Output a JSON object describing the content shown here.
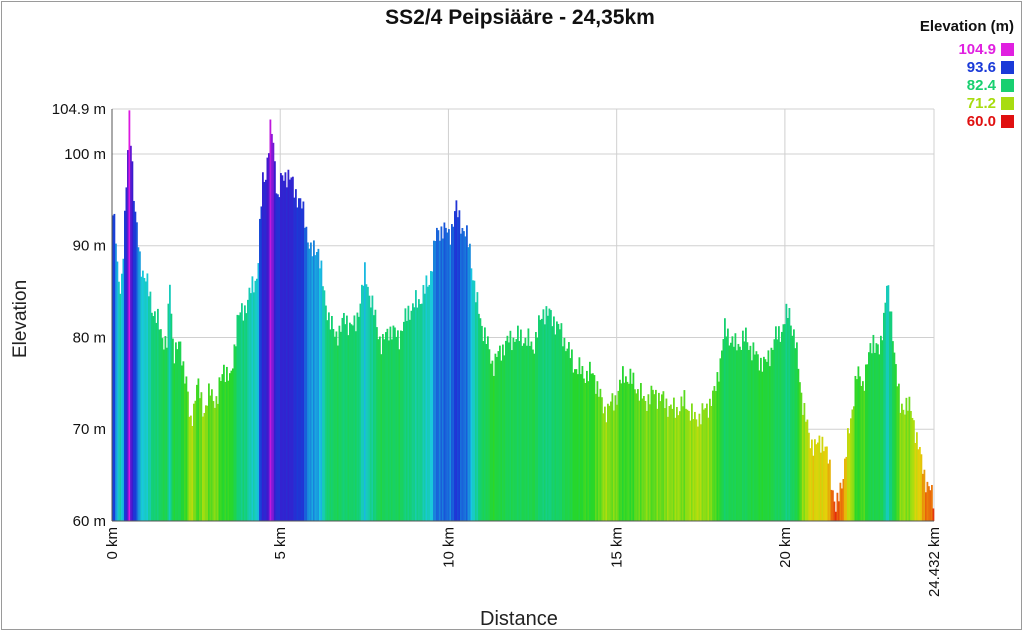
{
  "chart_data": {
    "type": "area",
    "title": "SS2/4 Peipsiääre - 24,35km",
    "xlabel": "Distance",
    "ylabel": "Elevation",
    "xlim": [
      0,
      24.432
    ],
    "ylim": [
      60,
      104.9
    ],
    "y_ticks": [
      "60 m",
      "70 m",
      "80 m",
      "90 m",
      "100 m",
      "104.9 m"
    ],
    "y_tick_values": [
      60,
      70,
      80,
      90,
      100,
      104.9
    ],
    "x_ticks": [
      "0 km",
      "5 km",
      "10 km",
      "15 km",
      "20 km",
      "24.432 km"
    ],
    "x_tick_values": [
      0,
      5,
      10,
      15,
      20,
      24.432
    ],
    "grid": true,
    "legend": {
      "title": "Elevation (m)",
      "placement": "top-right",
      "entries": [
        {
          "label": "104.9",
          "color": "#e020e0"
        },
        {
          "label": "93.6",
          "color": "#1a3ad8"
        },
        {
          "label": "82.4",
          "color": "#18d070"
        },
        {
          "label": "71.2",
          "color": "#a8dc10"
        },
        {
          "label": "60.0",
          "color": "#e01010"
        }
      ]
    },
    "profile": {
      "x": [
        0,
        0.1,
        0.15,
        0.25,
        0.4,
        0.5,
        0.55,
        0.65,
        0.8,
        1.0,
        1.2,
        1.4,
        1.6,
        1.7,
        1.8,
        2.0,
        2.2,
        2.3,
        2.5,
        2.7,
        2.9,
        3.1,
        3.3,
        3.5,
        3.7,
        3.9,
        4.1,
        4.3,
        4.45,
        4.55,
        4.7,
        4.8,
        4.9,
        5.0,
        5.2,
        5.4,
        5.55,
        5.7,
        5.9,
        6.1,
        6.3,
        6.6,
        6.9,
        7.2,
        7.5,
        7.8,
        8.0,
        8.2,
        8.5,
        8.8,
        9.1,
        9.4,
        9.6,
        9.8,
        10.0,
        10.2,
        10.4,
        10.6,
        10.8,
        11.0,
        11.3,
        11.6,
        11.9,
        12.2,
        12.5,
        12.8,
        13.1,
        13.4,
        13.7,
        14.0,
        14.3,
        14.6,
        14.9,
        15.2,
        15.5,
        15.8,
        16.1,
        16.4,
        16.7,
        17.0,
        17.3,
        17.6,
        17.9,
        18.2,
        18.5,
        18.8,
        19.1,
        19.4,
        19.7,
        19.9,
        20.1,
        20.3,
        20.5,
        20.7,
        20.9,
        21.1,
        21.3,
        21.5,
        21.7,
        21.9,
        22.1,
        22.3,
        22.6,
        22.8,
        23.0,
        23.2,
        23.4,
        23.6,
        23.8,
        24.0,
        24.2,
        24.432
      ],
      "y": [
        94.5,
        90,
        86,
        85.5,
        96,
        104.9,
        101,
        94,
        88.5,
        86,
        83,
        81,
        79,
        86,
        78.5,
        79,
        75,
        70,
        75,
        72,
        74,
        73,
        77,
        75,
        82,
        83,
        85,
        87,
        97,
        98,
        103,
        100,
        95,
        97,
        98,
        96,
        95,
        93,
        89,
        90,
        84,
        80,
        82,
        81,
        87,
        82,
        79,
        81,
        80,
        83,
        84,
        86,
        91,
        92,
        91,
        94,
        92,
        90,
        84,
        81,
        77,
        79,
        80,
        80,
        79,
        83,
        82,
        80,
        77,
        76,
        76,
        72,
        73,
        76,
        75,
        73,
        74,
        73,
        72,
        73,
        71,
        72,
        74,
        81,
        79,
        80,
        78,
        77,
        80,
        81,
        83,
        79,
        73,
        69,
        68,
        69,
        66,
        61,
        65,
        70,
        76,
        75,
        80,
        78,
        86,
        80,
        72,
        73,
        71,
        67,
        64,
        62
      ]
    }
  }
}
